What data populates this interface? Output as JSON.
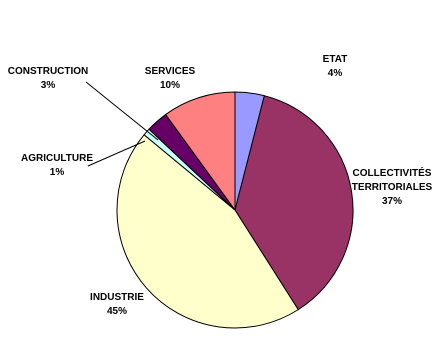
{
  "chart_data": {
    "type": "pie",
    "title": "",
    "slices": [
      {
        "label_big": "E",
        "label_small": "TAT",
        "label_line2_big": "",
        "label_line2_small": "",
        "value": 4,
        "value_text": "4%",
        "color": "#9999ff"
      },
      {
        "label_big": "C",
        "label_small": "OLLECTIVITÉS",
        "label_line2_big": "",
        "label_line2_small": "TERRITORIALES",
        "value": 37,
        "value_text": "37%",
        "color": "#993366"
      },
      {
        "label_big": "I",
        "label_small": "NDUSTRIE",
        "label_line2_big": "",
        "label_line2_small": "",
        "value": 45,
        "value_text": "45%",
        "color": "#ffffcc"
      },
      {
        "label_big": "A",
        "label_small": "GRICULTURE",
        "label_line2_big": "",
        "label_line2_small": "",
        "value": 1,
        "value_text": "1%",
        "color": "#ccffff"
      },
      {
        "label_big": "C",
        "label_small": "ONSTRUCTION",
        "label_line2_big": "",
        "label_line2_small": "",
        "value": 3,
        "value_text": "3%",
        "color": "#660066"
      },
      {
        "label_big": "S",
        "label_small": "ERVICES",
        "label_line2_big": "",
        "label_line2_small": "",
        "value": 10,
        "value_text": "10%",
        "color": "#ff8080"
      }
    ],
    "start_angle_deg": 0,
    "direction": "clockwise",
    "legend": "none",
    "outline_color": "#000000"
  }
}
